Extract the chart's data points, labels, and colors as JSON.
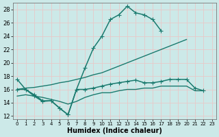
{
  "xlabel": "Humidex (Indice chaleur)",
  "background_color": "#cce9e8",
  "grid_color": "#e8c8c8",
  "line_color": "#1a7a6e",
  "xlim": [
    -0.5,
    23.5
  ],
  "ylim": [
    11.5,
    29.0
  ],
  "xticks": [
    0,
    1,
    2,
    3,
    4,
    5,
    6,
    7,
    8,
    9,
    10,
    11,
    12,
    13,
    14,
    15,
    16,
    17,
    18,
    19,
    20,
    21,
    22,
    23
  ],
  "yticks": [
    12,
    14,
    16,
    18,
    20,
    22,
    24,
    26,
    28
  ],
  "series": [
    {
      "x": [
        0,
        1,
        2,
        3,
        4,
        5,
        6,
        7,
        8,
        9,
        10,
        11,
        12,
        13,
        14,
        15,
        16,
        17
      ],
      "y": [
        17.5,
        16.0,
        15.0,
        14.2,
        14.3,
        13.2,
        12.2,
        16.0,
        19.2,
        22.2,
        24.0,
        26.5,
        27.2,
        28.5,
        27.5,
        27.2,
        26.5,
        24.8
      ],
      "marker": "+",
      "markersize": 4,
      "linewidth": 1.1
    },
    {
      "x": [
        0,
        1,
        2,
        3,
        4,
        5,
        6,
        7,
        8,
        9,
        10,
        11,
        12,
        13,
        14,
        15,
        16,
        17,
        18,
        19,
        20,
        21,
        22
      ],
      "y": [
        16.0,
        16.0,
        15.2,
        14.3,
        14.3,
        13.2,
        12.2,
        16.0,
        16.0,
        16.2,
        16.5,
        16.8,
        17.0,
        17.2,
        17.4,
        17.0,
        17.0,
        17.2,
        17.5,
        17.5,
        17.5,
        16.2,
        15.8
      ],
      "marker": "+",
      "markersize": 4,
      "linewidth": 1.1
    },
    {
      "x": [
        0,
        1,
        2,
        3,
        4,
        5,
        6,
        7,
        8,
        9,
        10,
        11,
        12,
        13,
        14,
        15,
        16,
        17,
        18,
        19,
        20
      ],
      "y": [
        16.0,
        16.2,
        16.3,
        16.5,
        16.7,
        17.0,
        17.2,
        17.5,
        17.8,
        18.2,
        18.5,
        19.0,
        19.5,
        20.0,
        20.5,
        21.0,
        21.5,
        22.0,
        22.5,
        23.0,
        23.5
      ],
      "marker": null,
      "markersize": 0,
      "linewidth": 1.0
    },
    {
      "x": [
        0,
        1,
        2,
        3,
        4,
        5,
        6,
        7,
        8,
        9,
        10,
        11,
        12,
        13,
        14,
        15,
        16,
        17,
        18,
        19,
        20,
        21,
        22
      ],
      "y": [
        15.0,
        15.2,
        15.0,
        14.8,
        14.5,
        14.2,
        13.8,
        14.2,
        14.8,
        15.2,
        15.5,
        15.5,
        15.8,
        16.0,
        16.0,
        16.2,
        16.2,
        16.5,
        16.5,
        16.5,
        16.5,
        15.8,
        15.8
      ],
      "marker": null,
      "markersize": 0,
      "linewidth": 1.0
    }
  ]
}
